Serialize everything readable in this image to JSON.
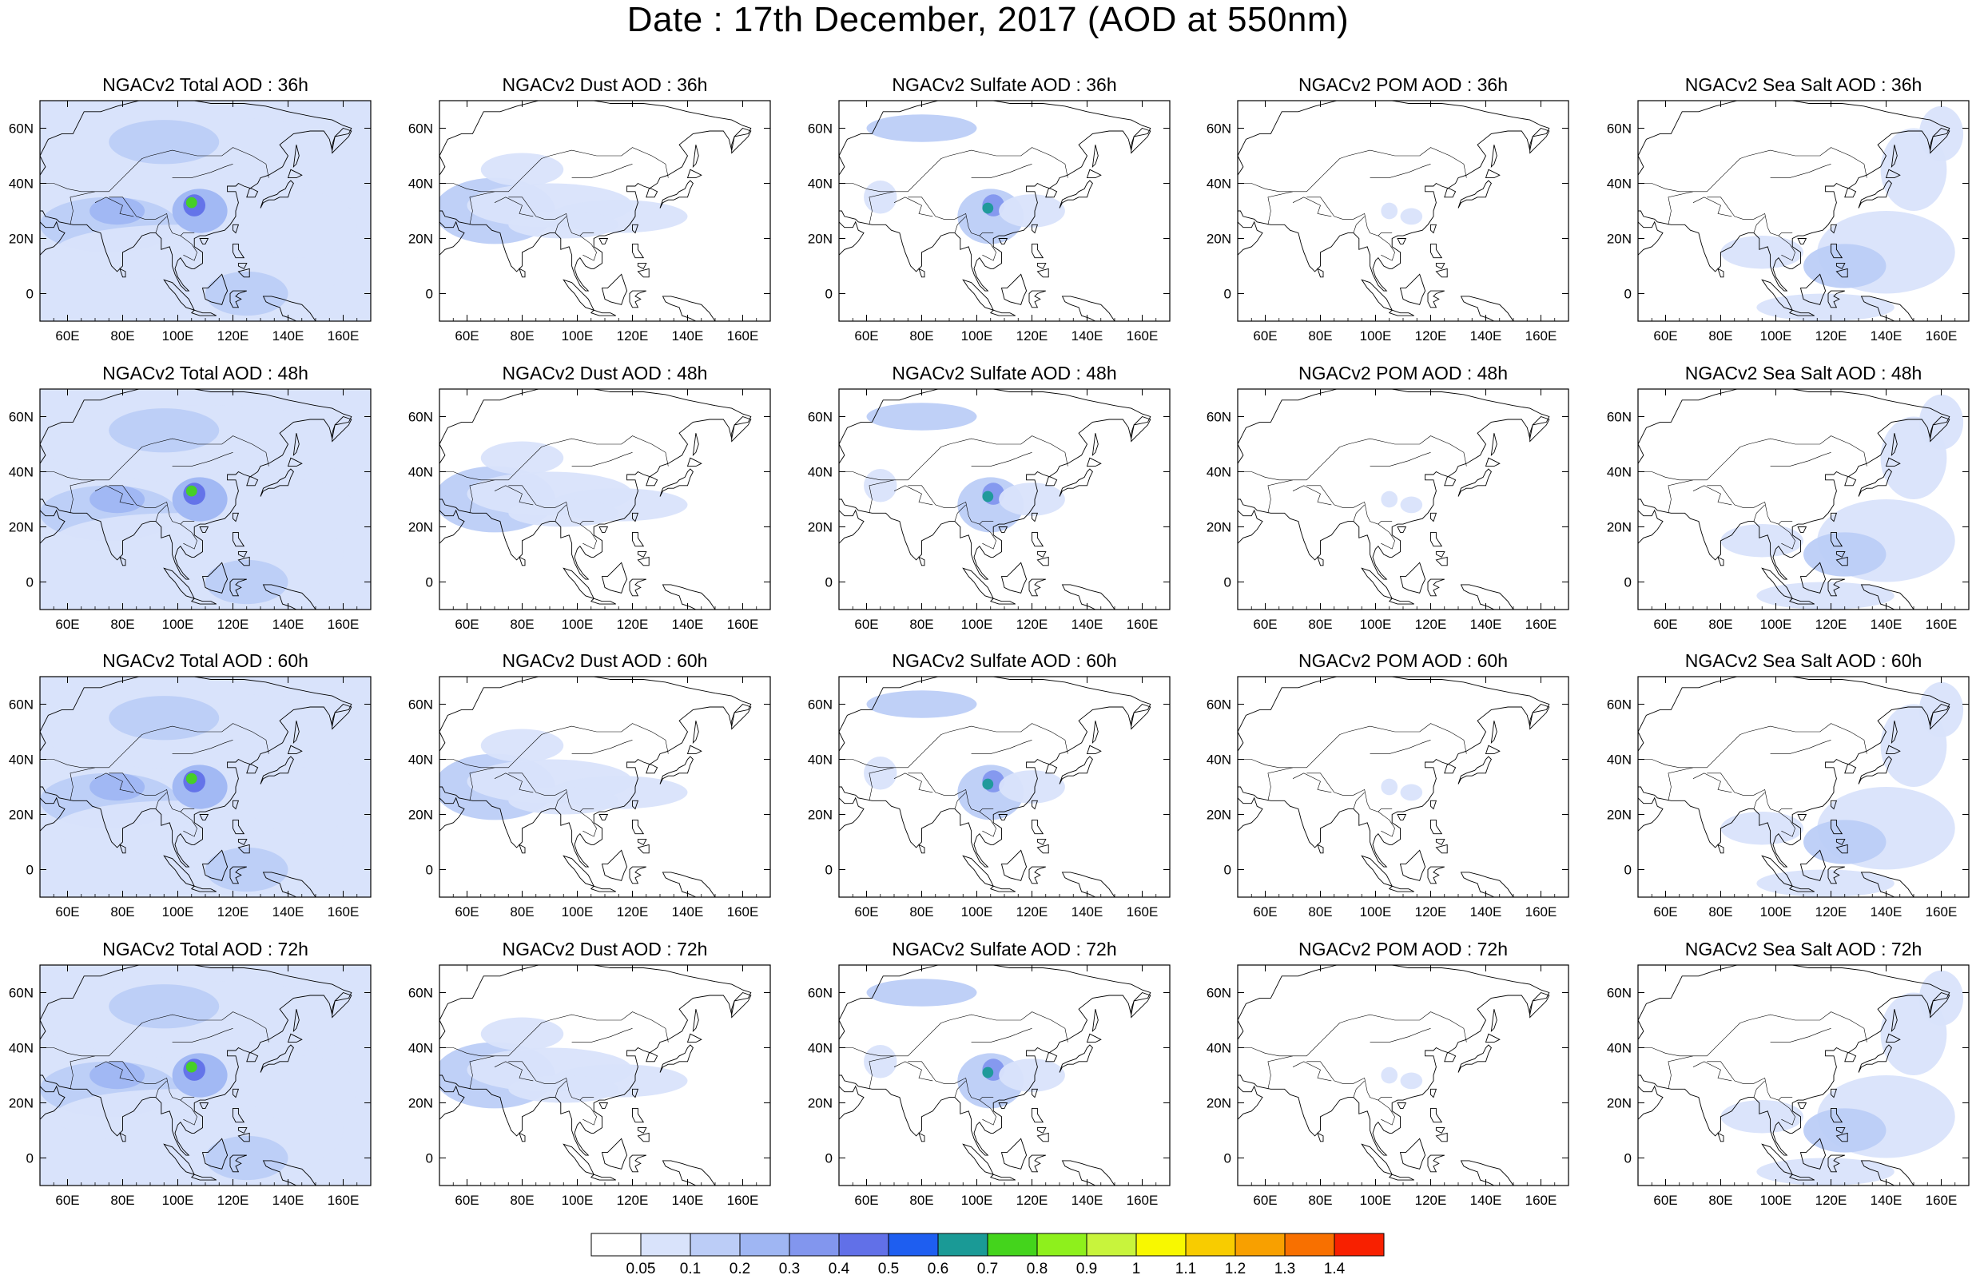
{
  "title": "Date : 17th December, 2017 (AOD at 550nm)",
  "lon_ticks": [
    "60E",
    "80E",
    "100E",
    "120E",
    "140E",
    "160E"
  ],
  "lat_ticks": [
    "60N",
    "40N",
    "20N",
    "0"
  ],
  "lon_values": [
    60,
    80,
    100,
    120,
    140,
    160
  ],
  "lat_values": [
    60,
    40,
    20,
    0
  ],
  "extent": {
    "lon_min": 50,
    "lon_max": 170,
    "lat_min": -10,
    "lat_max": 70
  },
  "hours": [
    "36h",
    "48h",
    "60h",
    "72h"
  ],
  "species": [
    "Total",
    "Dust",
    "Sulfate",
    "POM",
    "Sea Salt"
  ],
  "panel_titles": [
    [
      "NGACv2 Total AOD : 36h",
      "NGACv2 Dust AOD : 36h",
      "NGACv2 Sulfate AOD : 36h",
      "NGACv2 POM AOD : 36h",
      "NGACv2 Sea Salt AOD : 36h"
    ],
    [
      "NGACv2 Total AOD : 48h",
      "NGACv2 Dust AOD : 48h",
      "NGACv2 Sulfate AOD : 48h",
      "NGACv2 POM AOD : 48h",
      "NGACv2 Sea Salt AOD : 48h"
    ],
    [
      "NGACv2 Total AOD : 60h",
      "NGACv2 Dust AOD : 60h",
      "NGACv2 Sulfate AOD : 60h",
      "NGACv2 POM AOD : 60h",
      "NGACv2 Sea Salt AOD : 60h"
    ],
    [
      "NGACv2 Total AOD : 72h",
      "NGACv2 Dust AOD : 72h",
      "NGACv2 Sulfate AOD : 72h",
      "NGACv2 POM AOD : 72h",
      "NGACv2 Sea Salt  AOD : 72h"
    ]
  ],
  "colorbar": {
    "labels": [
      "0.05",
      "0.1",
      "0.2",
      "0.3",
      "0.4",
      "0.5",
      "0.6",
      "0.7",
      "0.8",
      "0.9",
      "1",
      "1.1",
      "1.2",
      "1.3",
      "1.4"
    ],
    "colors": [
      "#ffffff",
      "#d9e3fb",
      "#bccdf7",
      "#9fb6f3",
      "#8296ee",
      "#6170e8",
      "#1e5ef0",
      "#1a9a96",
      "#44d41c",
      "#8ef01c",
      "#c8f43c",
      "#f8f800",
      "#f8cc00",
      "#f8a000",
      "#f87000",
      "#f82000"
    ]
  },
  "colors": {
    "background": "#ffffff",
    "coastline": "#000000",
    "aerosol_blue": "#9fb6f3"
  }
}
